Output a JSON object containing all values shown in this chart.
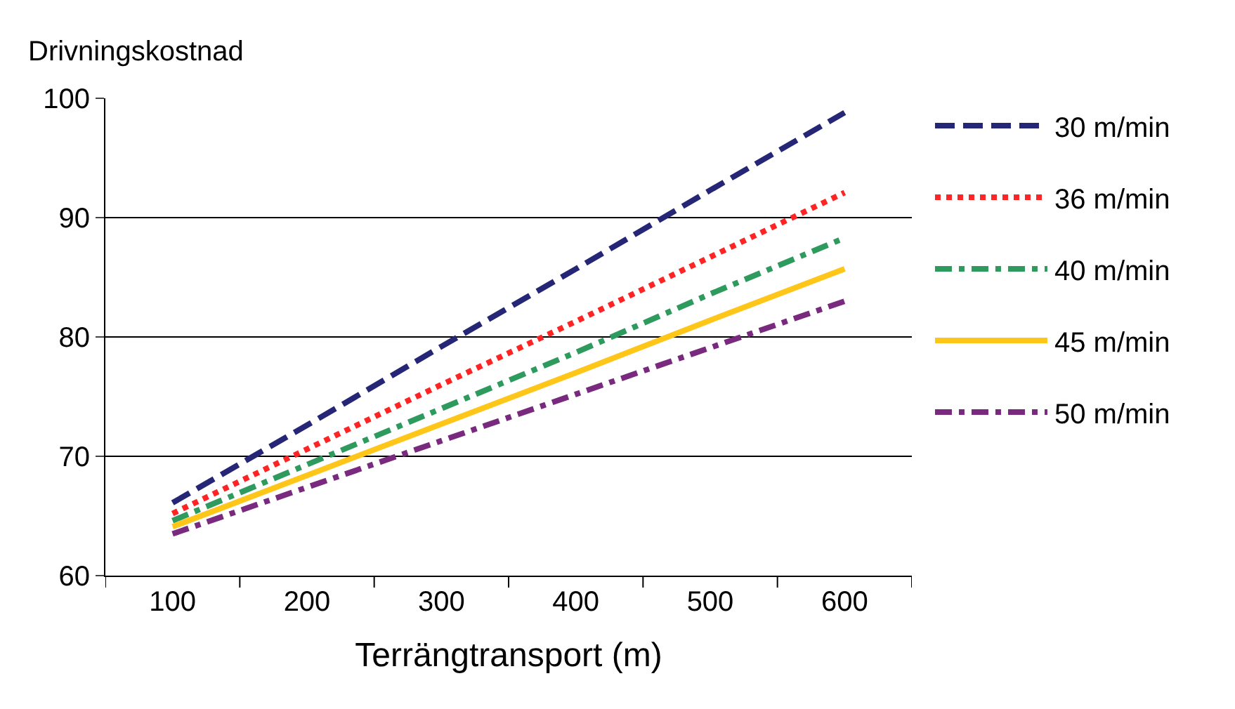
{
  "chart_data": {
    "type": "line",
    "ylabel": "Drivningskostnad",
    "xlabel": "Terrängtransport (m)",
    "categories": [
      "100",
      "200",
      "300",
      "400",
      "500",
      "600"
    ],
    "series": [
      {
        "name": "30 m/min",
        "color": "#262676",
        "line_style": "dashed",
        "values": [
          66.1,
          72.6,
          79.2,
          85.7,
          92.3,
          98.8
        ]
      },
      {
        "name": "36 m/min",
        "color": "#ff2424",
        "line_style": "dotted",
        "values": [
          65.2,
          70.6,
          76.0,
          81.3,
          86.7,
          92.1
        ]
      },
      {
        "name": "40 m/min",
        "color": "#2e9a5e",
        "line_style": "dashdot",
        "values": [
          64.6,
          69.3,
          74.0,
          78.7,
          83.6,
          88.3
        ]
      },
      {
        "name": "45 m/min",
        "color": "#ffc61a",
        "line_style": "solid",
        "values": [
          64.1,
          68.4,
          72.7,
          77.0,
          81.4,
          85.7
        ]
      },
      {
        "name": "50 m/min",
        "color": "#7a2a7e",
        "line_style": "dashdot",
        "values": [
          63.5,
          67.4,
          71.3,
          75.2,
          79.1,
          83.0
        ]
      }
    ],
    "ylim": [
      60,
      100
    ],
    "yticks": [
      60,
      70,
      80,
      90,
      100
    ],
    "grid": "y",
    "legend": "right",
    "marker": "none"
  }
}
